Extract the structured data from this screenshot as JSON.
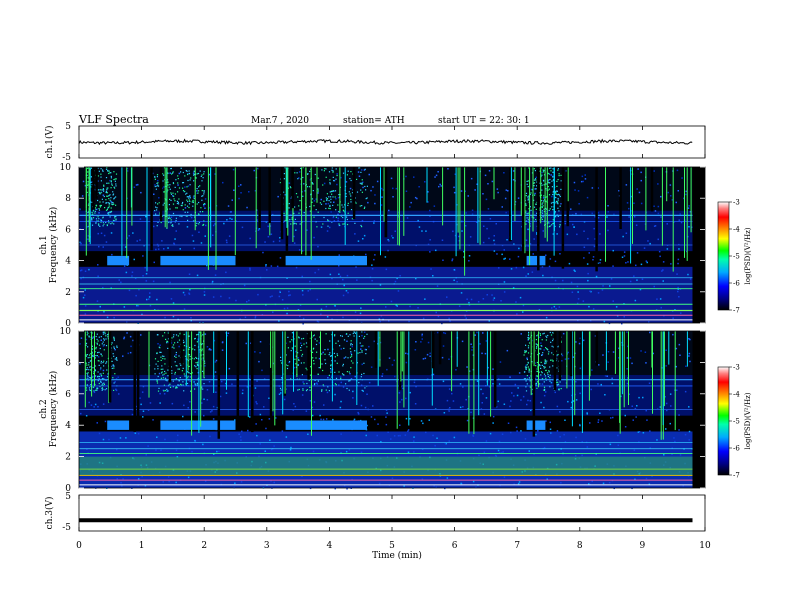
{
  "header": {
    "title": "VLF  Spectra",
    "date": "Mar.7  , 2020",
    "station": "station= ATH",
    "start": "start  UT  =     22: 30: 1"
  },
  "chart_data": [
    {
      "type": "line",
      "panel": "ch1-voltage",
      "ylabel": "ch.1(V)",
      "ylim": [
        -5,
        5
      ],
      "yticks": [
        "5",
        "-5"
      ],
      "series": [
        {
          "values": [
            0,
            0.1,
            -0.2,
            0.3,
            0.0,
            -0.1,
            0.2,
            -0.3,
            0.1,
            0.0,
            -0.2,
            0.2
          ]
        }
      ]
    },
    {
      "type": "heatmap",
      "panel": "ch1-spectrogram",
      "ylabel": "ch.1\nFrequency  (kHz)",
      "ylim": [
        0,
        10
      ],
      "yticks": [
        "0",
        "2",
        "4",
        "6",
        "8",
        "10"
      ],
      "colorbar": {
        "label": "log(PSD)(V²/Hz)",
        "range": [
          -7,
          -3
        ],
        "ticks": [
          "-3",
          "-4",
          "-5",
          "-6",
          "-7"
        ]
      },
      "tone_segments_min": [
        [
          0.45,
          0.8
        ],
        [
          1.3,
          2.5
        ],
        [
          3.3,
          4.6
        ],
        [
          7.15,
          7.45
        ]
      ]
    },
    {
      "type": "heatmap",
      "panel": "ch2-spectrogram",
      "ylabel": "ch.2\nFrequency  (kHz)",
      "ylim": [
        0,
        10
      ],
      "yticks": [
        "0",
        "2",
        "4",
        "6",
        "8",
        "10"
      ],
      "colorbar": {
        "label": "log(PSD)(V²/Hz)",
        "range": [
          -7,
          -3
        ],
        "ticks": [
          "-3",
          "-4",
          "-5",
          "-6",
          "-7"
        ]
      },
      "tone_segments_min": [
        [
          0.45,
          0.8
        ],
        [
          1.3,
          2.5
        ],
        [
          3.3,
          4.6
        ],
        [
          7.15,
          7.45
        ]
      ]
    },
    {
      "type": "line",
      "panel": "ch3-voltage",
      "ylabel": "ch.3(V)",
      "ylim": [
        -5,
        5
      ],
      "yticks": [
        "5",
        "-5"
      ],
      "series": [
        {
          "values": [
            -2,
            -2,
            -2,
            -2,
            -2,
            -2,
            -2,
            -2,
            -2,
            -2
          ]
        }
      ]
    }
  ],
  "xaxis": {
    "label": "Time  (min)",
    "xlim": [
      0,
      10
    ],
    "ticks": [
      "0",
      "1",
      "2",
      "3",
      "4",
      "5",
      "6",
      "7",
      "8",
      "9",
      "10"
    ],
    "data_end": 9.8
  }
}
